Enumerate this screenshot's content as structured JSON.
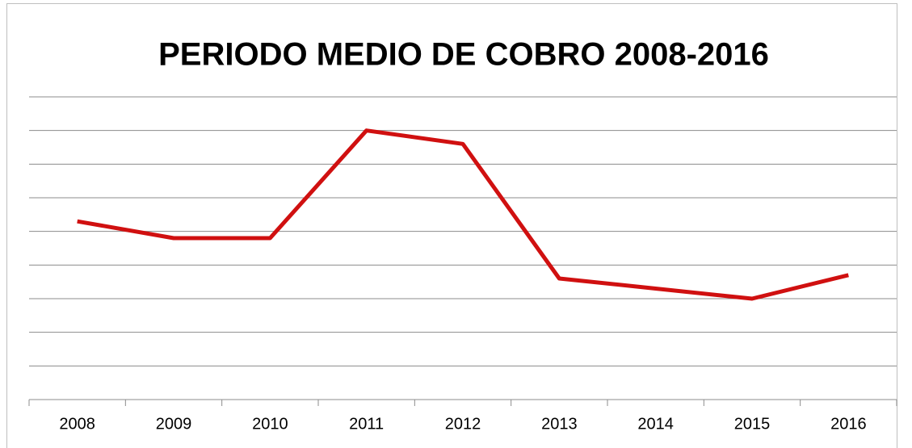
{
  "chart_data": {
    "type": "line",
    "title": "PERIODO MEDIO DE COBRO 2008-2016",
    "categories": [
      "2008",
      "2009",
      "2010",
      "2011",
      "2012",
      "2013",
      "2014",
      "2015",
      "2016"
    ],
    "series": [
      {
        "name": "Periodo medio de cobro",
        "color": "#d01010",
        "values": [
          5.3,
          4.8,
          4.8,
          8.0,
          7.6,
          3.6,
          3.3,
          3.0,
          3.7
        ]
      }
    ],
    "ylim": [
      0,
      9
    ],
    "yticks": [
      1,
      2,
      3,
      4,
      5,
      6,
      7,
      8,
      9
    ],
    "grid": true,
    "legend": false
  }
}
